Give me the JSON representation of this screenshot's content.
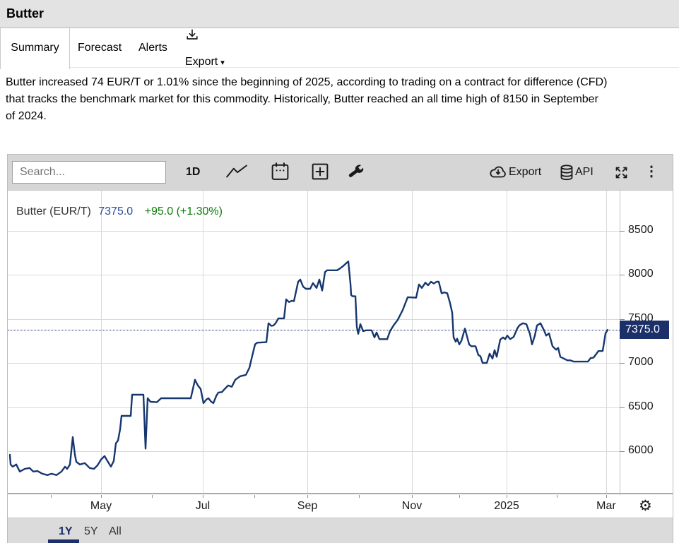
{
  "page": {
    "title": "Butter"
  },
  "tabs": {
    "summary": "Summary",
    "forecast": "Forecast",
    "alerts": "Alerts",
    "export": "Export"
  },
  "description_lines": [
    "Butter increased 74 EUR/T or 1.01% since the beginning of 2025, according to trading on a contract for difference (CFD)",
    "that tracks the benchmark market for this commodity. Historically, Butter reached an all time high of 8150 in September",
    "of 2024."
  ],
  "chart_widget": {
    "toolbar": {
      "search_placeholder": "Search...",
      "interval": "1D",
      "export_label": "Export",
      "api_label": "API"
    },
    "legend": {
      "name": "Butter (EUR/T)",
      "price": "7375.0",
      "change": "+95.0 (+1.30%)"
    },
    "price_badge": "7375.0",
    "range_buttons": [
      "1Y",
      "5Y",
      "All"
    ],
    "active_range": "1Y"
  },
  "icons": {
    "gear": "⚙",
    "kebab": "⋮",
    "caret_down": "▾"
  },
  "colors": {
    "line": "#16376e",
    "badge_bg": "#1b3069",
    "price_text": "#2a4d9e",
    "change_green": "#0b7e0b",
    "grid": "#d9d9d9",
    "toolbar_bg": "#d6d6d6",
    "title_bar_bg": "#e3e3e3"
  },
  "chart_data": {
    "type": "line",
    "title": "Butter (EUR/T)",
    "ylabel": "EUR/T",
    "current_price": 7375.0,
    "change_abs": 95.0,
    "change_pct": 1.3,
    "all_time_high": 8150,
    "ylim": [
      5504,
      8960
    ],
    "y_ticks": [
      6000,
      6500,
      7000,
      7500,
      8000,
      8500
    ],
    "x_ticks": [
      {
        "label": "May",
        "t": 0.1524
      },
      {
        "label": "Jul",
        "t": 0.3187
      },
      {
        "label": "Sep",
        "t": 0.4896
      },
      {
        "label": "Nov",
        "t": 0.6605
      },
      {
        "label": "2025",
        "t": 0.8152
      },
      {
        "label": "Mar",
        "t": 0.978
      }
    ],
    "x_minor_ticks": [
      0.0704,
      0.1524,
      0.2356,
      0.3187,
      0.403,
      0.4896,
      0.5739,
      0.6605,
      0.7379,
      0.8152,
      0.8972,
      0.978
    ],
    "series": [
      {
        "name": "Butter (EUR/T)",
        "points": [
          [
            0.0035,
            5960
          ],
          [
            0.0046,
            5850
          ],
          [
            0.0081,
            5825
          ],
          [
            0.0139,
            5850
          ],
          [
            0.0196,
            5770
          ],
          [
            0.0277,
            5800
          ],
          [
            0.0358,
            5810
          ],
          [
            0.0416,
            5770
          ],
          [
            0.0485,
            5775
          ],
          [
            0.0566,
            5745
          ],
          [
            0.0647,
            5730
          ],
          [
            0.0716,
            5745
          ],
          [
            0.0797,
            5730
          ],
          [
            0.0878,
            5770
          ],
          [
            0.0935,
            5825
          ],
          [
            0.097,
            5800
          ],
          [
            0.1016,
            5850
          ],
          [
            0.1062,
            6160
          ],
          [
            0.1097,
            5960
          ],
          [
            0.112,
            5880
          ],
          [
            0.1178,
            5850
          ],
          [
            0.1259,
            5865
          ],
          [
            0.1339,
            5810
          ],
          [
            0.1409,
            5800
          ],
          [
            0.1466,
            5840
          ],
          [
            0.1524,
            5905
          ],
          [
            0.1582,
            5945
          ],
          [
            0.1628,
            5890
          ],
          [
            0.1686,
            5825
          ],
          [
            0.1732,
            5890
          ],
          [
            0.1767,
            6090
          ],
          [
            0.1801,
            6120
          ],
          [
            0.1836,
            6250
          ],
          [
            0.1859,
            6400
          ],
          [
            0.2009,
            6400
          ],
          [
            0.2032,
            6640
          ],
          [
            0.2217,
            6640
          ],
          [
            0.2252,
            6030
          ],
          [
            0.2286,
            6600
          ],
          [
            0.2333,
            6560
          ],
          [
            0.2437,
            6555
          ],
          [
            0.2506,
            6600
          ],
          [
            0.2991,
            6600
          ],
          [
            0.306,
            6810
          ],
          [
            0.3106,
            6745
          ],
          [
            0.3152,
            6705
          ],
          [
            0.3199,
            6545
          ],
          [
            0.3245,
            6585
          ],
          [
            0.3279,
            6600
          ],
          [
            0.3326,
            6560
          ],
          [
            0.336,
            6545
          ],
          [
            0.3406,
            6625
          ],
          [
            0.3441,
            6665
          ],
          [
            0.3499,
            6670
          ],
          [
            0.3545,
            6705
          ],
          [
            0.3603,
            6745
          ],
          [
            0.366,
            6730
          ],
          [
            0.3718,
            6810
          ],
          [
            0.3799,
            6850
          ],
          [
            0.3891,
            6865
          ],
          [
            0.3949,
            6945
          ],
          [
            0.3995,
            7080
          ],
          [
            0.4041,
            7210
          ],
          [
            0.4076,
            7230
          ],
          [
            0.4226,
            7235
          ],
          [
            0.4261,
            7450
          ],
          [
            0.4307,
            7420
          ],
          [
            0.4342,
            7425
          ],
          [
            0.4376,
            7450
          ],
          [
            0.4423,
            7505
          ],
          [
            0.4515,
            7505
          ],
          [
            0.455,
            7720
          ],
          [
            0.4596,
            7690
          ],
          [
            0.4642,
            7705
          ],
          [
            0.4677,
            7700
          ],
          [
            0.4746,
            7920
          ],
          [
            0.4781,
            7945
          ],
          [
            0.4827,
            7865
          ],
          [
            0.4873,
            7840
          ],
          [
            0.4942,
            7840
          ],
          [
            0.4988,
            7905
          ],
          [
            0.5046,
            7850
          ],
          [
            0.5092,
            7945
          ],
          [
            0.5139,
            7820
          ],
          [
            0.5185,
            8030
          ],
          [
            0.5219,
            8050
          ],
          [
            0.5381,
            8050
          ],
          [
            0.5427,
            8070
          ],
          [
            0.5485,
            8100
          ],
          [
            0.5531,
            8130
          ],
          [
            0.5566,
            8150
          ],
          [
            0.56,
            7900
          ],
          [
            0.5612,
            7770
          ],
          [
            0.5635,
            7755
          ],
          [
            0.5681,
            7755
          ],
          [
            0.5704,
            7410
          ],
          [
            0.5727,
            7330
          ],
          [
            0.5762,
            7440
          ],
          [
            0.5808,
            7360
          ],
          [
            0.5854,
            7370
          ],
          [
            0.5947,
            7370
          ],
          [
            0.5993,
            7290
          ],
          [
            0.6028,
            7345
          ],
          [
            0.6074,
            7270
          ],
          [
            0.6201,
            7270
          ],
          [
            0.6247,
            7360
          ],
          [
            0.6305,
            7425
          ],
          [
            0.6374,
            7490
          ],
          [
            0.6455,
            7600
          ],
          [
            0.6536,
            7745
          ],
          [
            0.6674,
            7740
          ],
          [
            0.6721,
            7890
          ],
          [
            0.6767,
            7850
          ],
          [
            0.6824,
            7910
          ],
          [
            0.687,
            7880
          ],
          [
            0.6917,
            7920
          ],
          [
            0.6963,
            7900
          ],
          [
            0.7009,
            7920
          ],
          [
            0.7044,
            7920
          ],
          [
            0.709,
            7790
          ],
          [
            0.7136,
            7800
          ],
          [
            0.7182,
            7790
          ],
          [
            0.7228,
            7680
          ],
          [
            0.7263,
            7570
          ],
          [
            0.7286,
            7290
          ],
          [
            0.7321,
            7240
          ],
          [
            0.7344,
            7275
          ],
          [
            0.7379,
            7210
          ],
          [
            0.7413,
            7250
          ],
          [
            0.7471,
            7390
          ],
          [
            0.7506,
            7300
          ],
          [
            0.754,
            7210
          ],
          [
            0.7575,
            7190
          ],
          [
            0.7644,
            7190
          ],
          [
            0.7691,
            7090
          ],
          [
            0.7725,
            7075
          ],
          [
            0.776,
            7000
          ],
          [
            0.7829,
            7000
          ],
          [
            0.7875,
            7105
          ],
          [
            0.7921,
            7050
          ],
          [
            0.7956,
            7145
          ],
          [
            0.7991,
            7070
          ],
          [
            0.8049,
            7265
          ],
          [
            0.8095,
            7290
          ],
          [
            0.8129,
            7270
          ],
          [
            0.8164,
            7310
          ],
          [
            0.821,
            7270
          ],
          [
            0.8268,
            7295
          ],
          [
            0.8326,
            7390
          ],
          [
            0.836,
            7425
          ],
          [
            0.8418,
            7450
          ],
          [
            0.8476,
            7440
          ],
          [
            0.8533,
            7330
          ],
          [
            0.8568,
            7210
          ],
          [
            0.8614,
            7310
          ],
          [
            0.8649,
            7425
          ],
          [
            0.8707,
            7450
          ],
          [
            0.8764,
            7370
          ],
          [
            0.8799,
            7310
          ],
          [
            0.8845,
            7335
          ],
          [
            0.8903,
            7190
          ],
          [
            0.8961,
            7150
          ],
          [
            0.8995,
            7170
          ],
          [
            0.903,
            7070
          ],
          [
            0.9088,
            7050
          ],
          [
            0.9146,
            7030
          ],
          [
            0.9192,
            7030
          ],
          [
            0.925,
            7015
          ],
          [
            0.948,
            7015
          ],
          [
            0.9527,
            7055
          ],
          [
            0.9573,
            7060
          ],
          [
            0.9654,
            7135
          ],
          [
            0.9723,
            7135
          ],
          [
            0.9769,
            7335
          ],
          [
            0.9804,
            7375
          ]
        ]
      }
    ]
  }
}
